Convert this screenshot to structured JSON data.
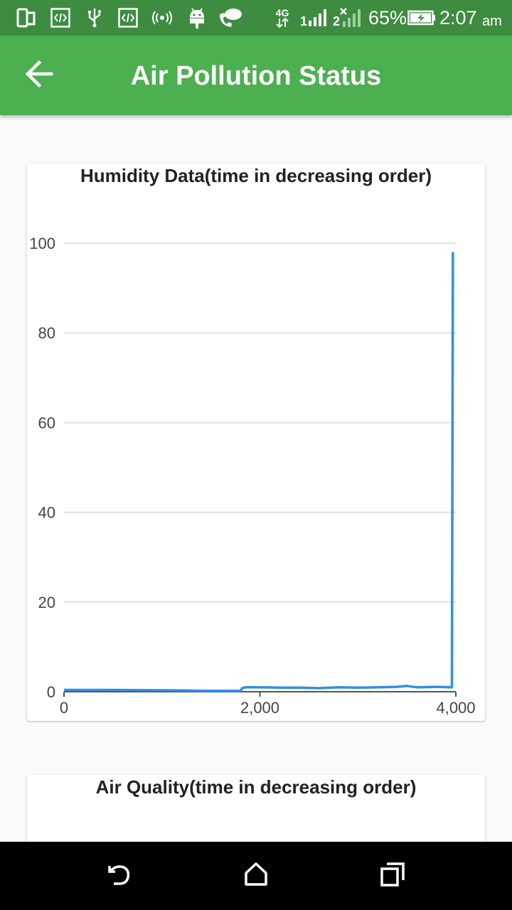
{
  "status_bar": {
    "battery_percent": "65%",
    "time": "2:07",
    "ampm": "am",
    "network": "4G",
    "sim1": "1",
    "sim2": "2"
  },
  "app_bar": {
    "title": "Air Pollution Status",
    "background_color": "#4caf50"
  },
  "cards": {
    "humidity_title": "Humidity Data(time in decreasing order)",
    "air_quality_title": "Air Quality(time in decreasing order)"
  },
  "chart_data": {
    "type": "line",
    "title": "Humidity Data(time in decreasing order)",
    "xlabel": "",
    "ylabel": "",
    "xlim": [
      0,
      4000
    ],
    "ylim": [
      0,
      100
    ],
    "x_ticks": [
      0,
      2000,
      4000
    ],
    "x_tick_labels": [
      "0",
      "2,000",
      "4,000"
    ],
    "y_ticks": [
      0,
      20,
      40,
      60,
      80,
      100
    ],
    "y_tick_labels": [
      "0",
      "20",
      "40",
      "60",
      "80",
      "100"
    ],
    "grid": true,
    "series": [
      {
        "color": "#2f8fe6",
        "x": [
          0,
          400,
          800,
          1200,
          1300,
          1400,
          1600,
          1800,
          1820,
          1850,
          2000,
          2200,
          2400,
          2600,
          2800,
          3000,
          3200,
          3400,
          3500,
          3600,
          3800,
          3960,
          3965,
          3970
        ],
        "y": [
          0.4,
          0.4,
          0.35,
          0.3,
          0.25,
          0.2,
          0.2,
          0.2,
          0.8,
          1.0,
          1.0,
          0.9,
          0.9,
          0.8,
          1.0,
          0.9,
          1.0,
          1.1,
          1.3,
          1.0,
          1.1,
          1.0,
          50,
          98
        ]
      }
    ]
  }
}
